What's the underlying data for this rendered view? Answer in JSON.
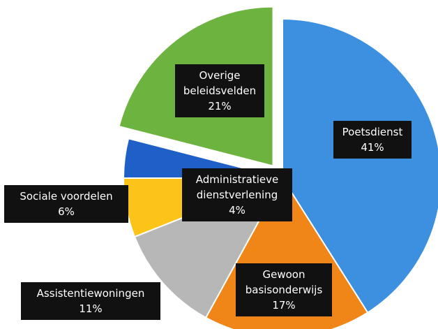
{
  "chart_data": {
    "type": "pie",
    "categories": [
      "Poetsdienst",
      "Gewoon basisonderwijs",
      "Assistentiewoningen",
      "Sociale voordelen",
      "Administratieve dienstverlening",
      "Overige beleidsvelden"
    ],
    "values": [
      41,
      17,
      11,
      6,
      4,
      21
    ],
    "value_labels": [
      "41%",
      "17%",
      "11%",
      "6%",
      "4%",
      "21%"
    ],
    "colors": [
      "#3d8fe0",
      "#f08518",
      "#b7b7b7",
      "#fcc419",
      "#1f5fc8",
      "#6cb33f"
    ],
    "exploded": [
      false,
      false,
      false,
      false,
      false,
      true
    ]
  }
}
